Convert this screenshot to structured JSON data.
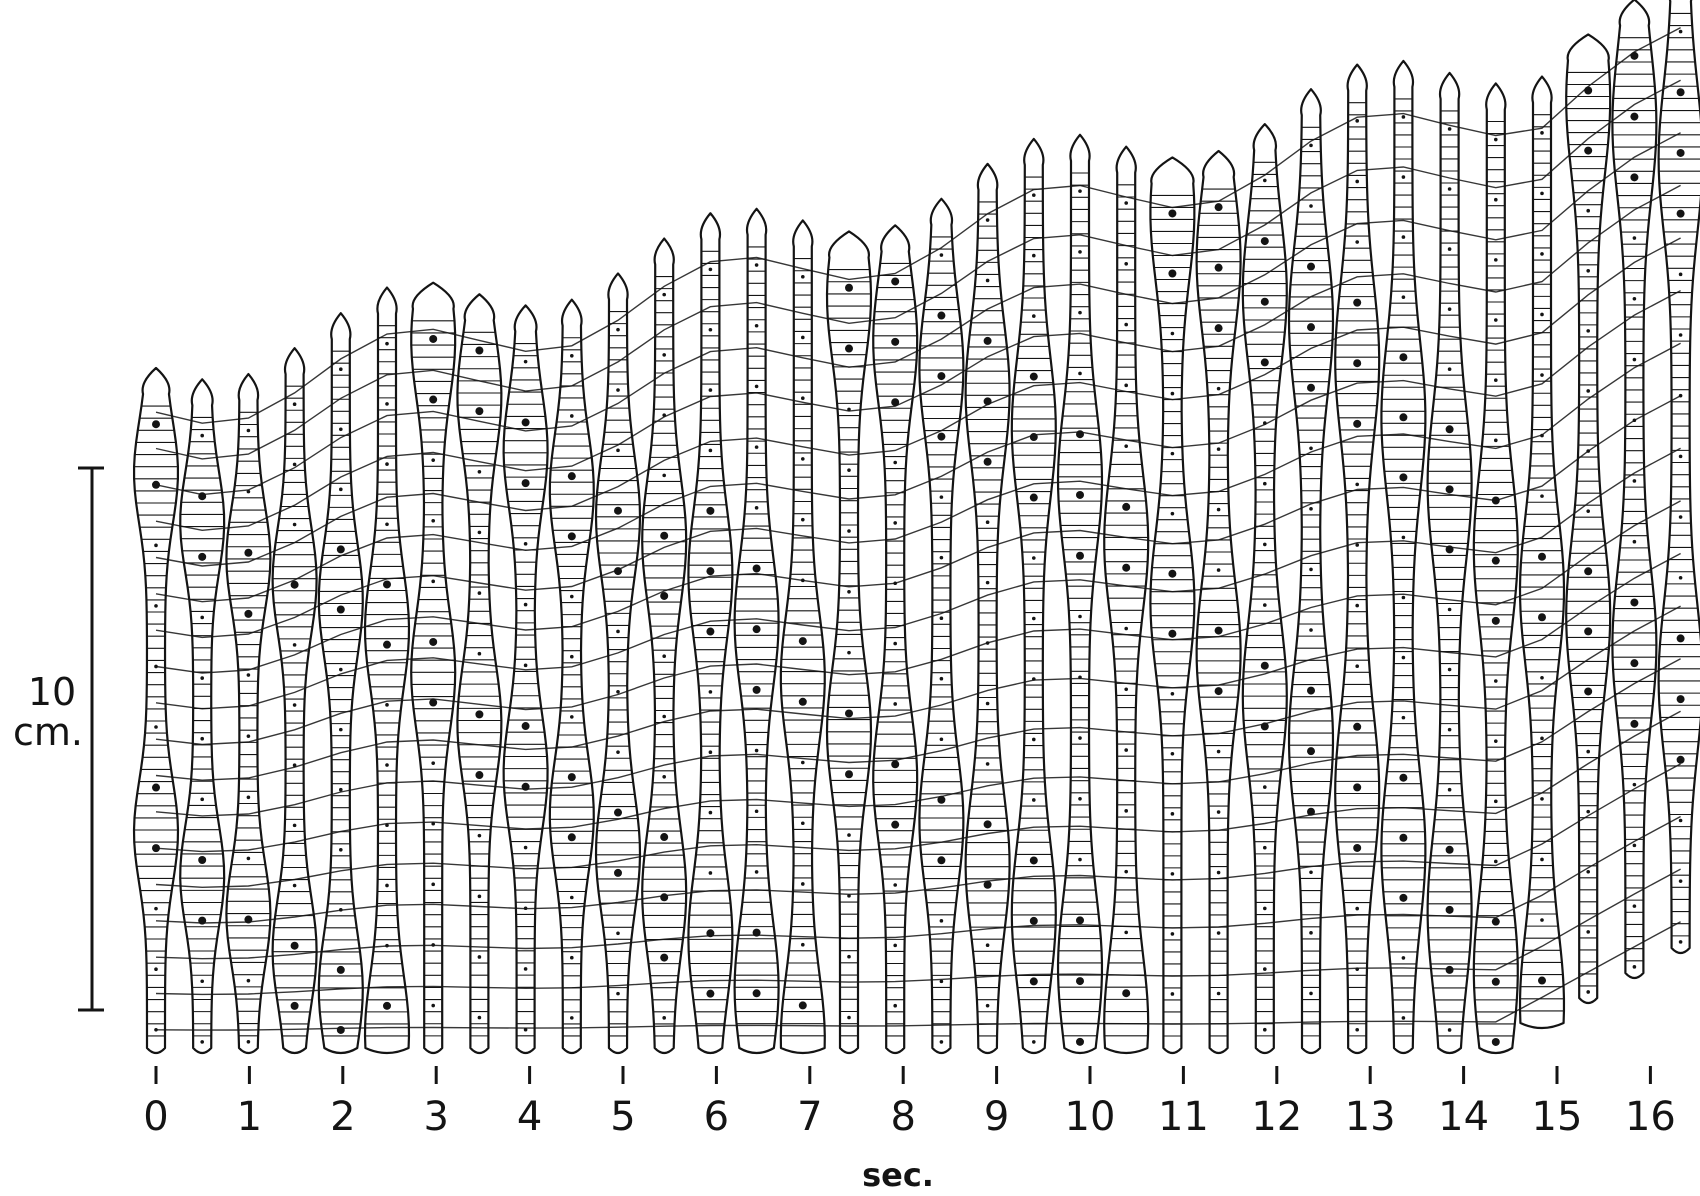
{
  "figure": {
    "ink_color": "#141414",
    "paper_color": "#ffffff",
    "x_axis": {
      "unit": "sec.",
      "tick_labels": [
        "0",
        "1",
        "2",
        "3",
        "4",
        "5",
        "6",
        "7",
        "8",
        "9",
        "10",
        "11",
        "12",
        "13",
        "14",
        "15",
        "16"
      ]
    },
    "scale_bar": {
      "value": "10",
      "unit": "cm."
    }
  }
}
